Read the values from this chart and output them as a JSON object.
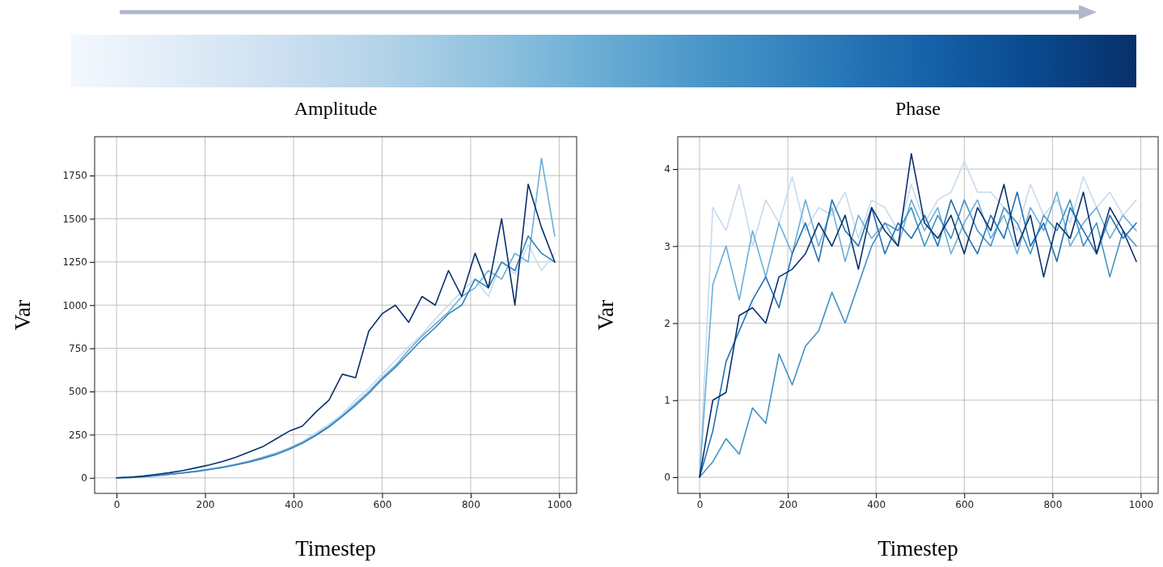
{
  "chart_data": [
    {
      "type": "line",
      "title": "Amplitude",
      "xlabel": "Timestep",
      "ylabel": "Var",
      "xlim": [
        -49.5,
        1039.5
      ],
      "ylim": [
        -90,
        1975
      ],
      "xticks": [
        0,
        200,
        400,
        600,
        800,
        1000
      ],
      "yticks": [
        0,
        250,
        500,
        750,
        1000,
        1250,
        1500,
        1750
      ],
      "grid": true,
      "x": [
        0,
        30,
        60,
        90,
        120,
        150,
        180,
        210,
        240,
        270,
        300,
        330,
        360,
        390,
        420,
        450,
        480,
        510,
        540,
        570,
        600,
        630,
        660,
        690,
        720,
        750,
        780,
        810,
        840,
        870,
        900,
        930,
        960,
        990
      ],
      "series": [
        {
          "color": "#c6dbef",
          "values": [
            0,
            3,
            8,
            15,
            22,
            30,
            40,
            52,
            65,
            80,
            100,
            120,
            145,
            175,
            210,
            260,
            310,
            370,
            450,
            520,
            600,
            680,
            760,
            830,
            920,
            1000,
            1080,
            1150,
            1050,
            1250,
            1180,
            1350,
            1200,
            1300
          ]
        },
        {
          "color": "#6baed6",
          "values": [
            0,
            3,
            7,
            14,
            21,
            29,
            39,
            50,
            62,
            78,
            95,
            118,
            140,
            170,
            205,
            250,
            300,
            360,
            430,
            500,
            580,
            650,
            740,
            820,
            890,
            960,
            1050,
            1100,
            1200,
            1150,
            1300,
            1250,
            1850,
            1400
          ]
        },
        {
          "color": "#3182bd",
          "values": [
            0,
            2,
            6,
            12,
            20,
            28,
            37,
            48,
            60,
            75,
            92,
            112,
            135,
            165,
            200,
            245,
            295,
            355,
            420,
            490,
            570,
            640,
            720,
            800,
            870,
            950,
            1000,
            1150,
            1100,
            1250,
            1200,
            1400,
            1300,
            1250
          ]
        },
        {
          "color": "#08306b",
          "values": [
            0,
            4,
            10,
            20,
            30,
            42,
            58,
            75,
            95,
            120,
            150,
            180,
            225,
            270,
            300,
            380,
            450,
            600,
            580,
            850,
            950,
            1000,
            900,
            1050,
            1000,
            1200,
            1050,
            1300,
            1100,
            1500,
            1000,
            1700,
            1450,
            1250
          ]
        }
      ]
    },
    {
      "type": "line",
      "title": "Phase",
      "xlabel": "Timestep",
      "ylabel": "Var",
      "xlim": [
        -49.5,
        1039.5
      ],
      "ylim": [
        -0.21,
        4.42
      ],
      "xticks": [
        0,
        200,
        400,
        600,
        800,
        1000
      ],
      "yticks": [
        0,
        1,
        2,
        3,
        4
      ],
      "grid": true,
      "x": [
        0,
        30,
        60,
        90,
        120,
        150,
        180,
        210,
        240,
        270,
        300,
        330,
        360,
        390,
        420,
        450,
        480,
        510,
        540,
        570,
        600,
        630,
        660,
        690,
        720,
        750,
        780,
        810,
        840,
        870,
        900,
        930,
        960,
        990
      ],
      "series": [
        {
          "color": "#c6dbef",
          "values": [
            0,
            3.5,
            3.2,
            3.8,
            3.0,
            3.6,
            3.3,
            3.9,
            3.2,
            3.5,
            3.4,
            3.7,
            3.1,
            3.6,
            3.5,
            3.2,
            3.8,
            3.3,
            3.6,
            3.7,
            4.1,
            3.7,
            3.7,
            3.5,
            3.2,
            3.8,
            3.4,
            3.6,
            3.3,
            3.9,
            3.5,
            3.7,
            3.4,
            3.6
          ]
        },
        {
          "color": "#6baed6",
          "values": [
            0,
            2.5,
            3.0,
            2.3,
            3.2,
            2.6,
            3.3,
            2.9,
            3.6,
            3.0,
            3.5,
            2.8,
            3.4,
            3.1,
            3.3,
            3.0,
            3.6,
            3.2,
            3.5,
            2.9,
            3.3,
            3.6,
            3.1,
            3.4,
            2.9,
            3.5,
            3.2,
            3.7,
            3.0,
            3.3,
            3.5,
            3.1,
            3.4,
            3.2
          ]
        },
        {
          "color": "#4292c6",
          "values": [
            0,
            0.2,
            0.5,
            0.3,
            0.9,
            0.7,
            1.6,
            1.2,
            1.7,
            1.9,
            2.4,
            2.0,
            2.5,
            3.0,
            3.3,
            3.2,
            3.5,
            3.0,
            3.4,
            3.1,
            3.6,
            3.2,
            3.0,
            3.5,
            3.3,
            2.9,
            3.4,
            3.2,
            3.6,
            3.0,
            3.3,
            2.6,
            3.2,
            3.0
          ]
        },
        {
          "color": "#2171b5",
          "values": [
            0,
            0.6,
            1.5,
            1.9,
            2.3,
            2.6,
            2.2,
            2.9,
            3.3,
            2.8,
            3.6,
            3.2,
            3.0,
            3.5,
            2.9,
            3.3,
            3.1,
            3.4,
            3.0,
            3.6,
            3.2,
            2.9,
            3.4,
            3.1,
            3.7,
            3.0,
            3.3,
            2.8,
            3.5,
            3.2,
            2.9,
            3.4,
            3.1,
            3.3
          ]
        },
        {
          "color": "#08306b",
          "values": [
            0,
            1.0,
            1.1,
            2.1,
            2.2,
            2.0,
            2.6,
            2.7,
            2.9,
            3.3,
            3.0,
            3.4,
            2.7,
            3.5,
            3.2,
            3.0,
            4.2,
            3.3,
            3.1,
            3.4,
            2.9,
            3.5,
            3.2,
            3.8,
            3.0,
            3.4,
            2.6,
            3.3,
            3.1,
            3.7,
            2.9,
            3.5,
            3.2,
            2.8
          ]
        }
      ]
    }
  ]
}
